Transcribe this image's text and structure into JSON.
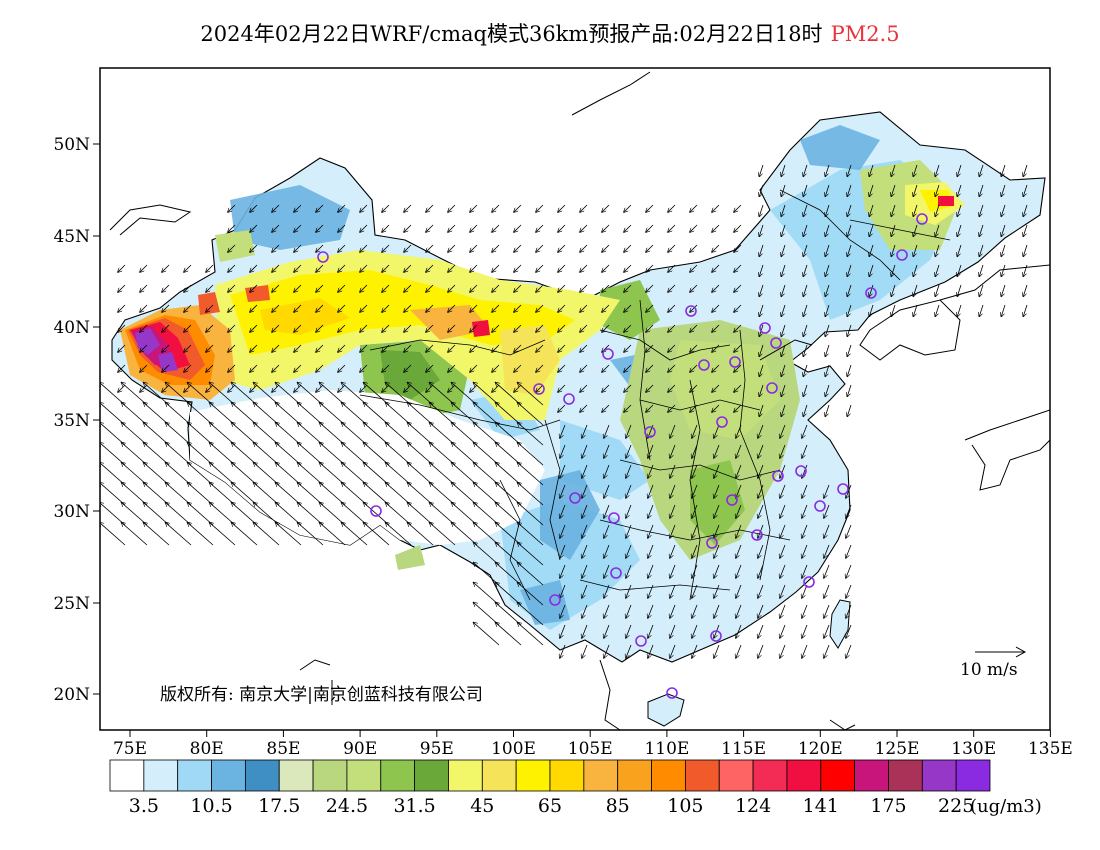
{
  "header": {
    "title": "2024年02月22日WRF/cmaq模式36km预报产品:02月22日18时",
    "species": "PM2.5"
  },
  "colors": {
    "species_text": "#e8333c"
  },
  "map": {
    "lat_labels": [
      "50N",
      "45N",
      "40N",
      "35N",
      "30N",
      "25N",
      "20N"
    ],
    "lon_labels": [
      "75E",
      "80E",
      "85E",
      "90E",
      "95E",
      "100E",
      "105E",
      "110E",
      "115E",
      "120E",
      "125E",
      "130E",
      "135E"
    ],
    "copyright": "版权所有: 南京大学|南京创蓝科技有限公司",
    "wind_reference": "10 m/s"
  },
  "legend": {
    "colors": [
      "#ffffff",
      "#d4eefb",
      "#9fd9f6",
      "#6bb3e1",
      "#3f8ec4",
      "#dbe8bc",
      "#b8d77f",
      "#c3df7c",
      "#8dc54f",
      "#6aa83a",
      "#f2f76a",
      "#f5e45a",
      "#fef200",
      "#ffd900",
      "#f9b440",
      "#f8a21e",
      "#ff8c00",
      "#f15a2b",
      "#ff6464",
      "#f22c55",
      "#f10e40",
      "#ff0000",
      "#c8157c",
      "#aa3158",
      "#9637c8",
      "#8a2be2"
    ],
    "labels": [
      "3.5",
      "10.5",
      "17.5",
      "24.5",
      "31.5",
      "45",
      "65",
      "85",
      "105",
      "124",
      "141",
      "175",
      "225"
    ],
    "unit": "(ug/m3)"
  }
}
